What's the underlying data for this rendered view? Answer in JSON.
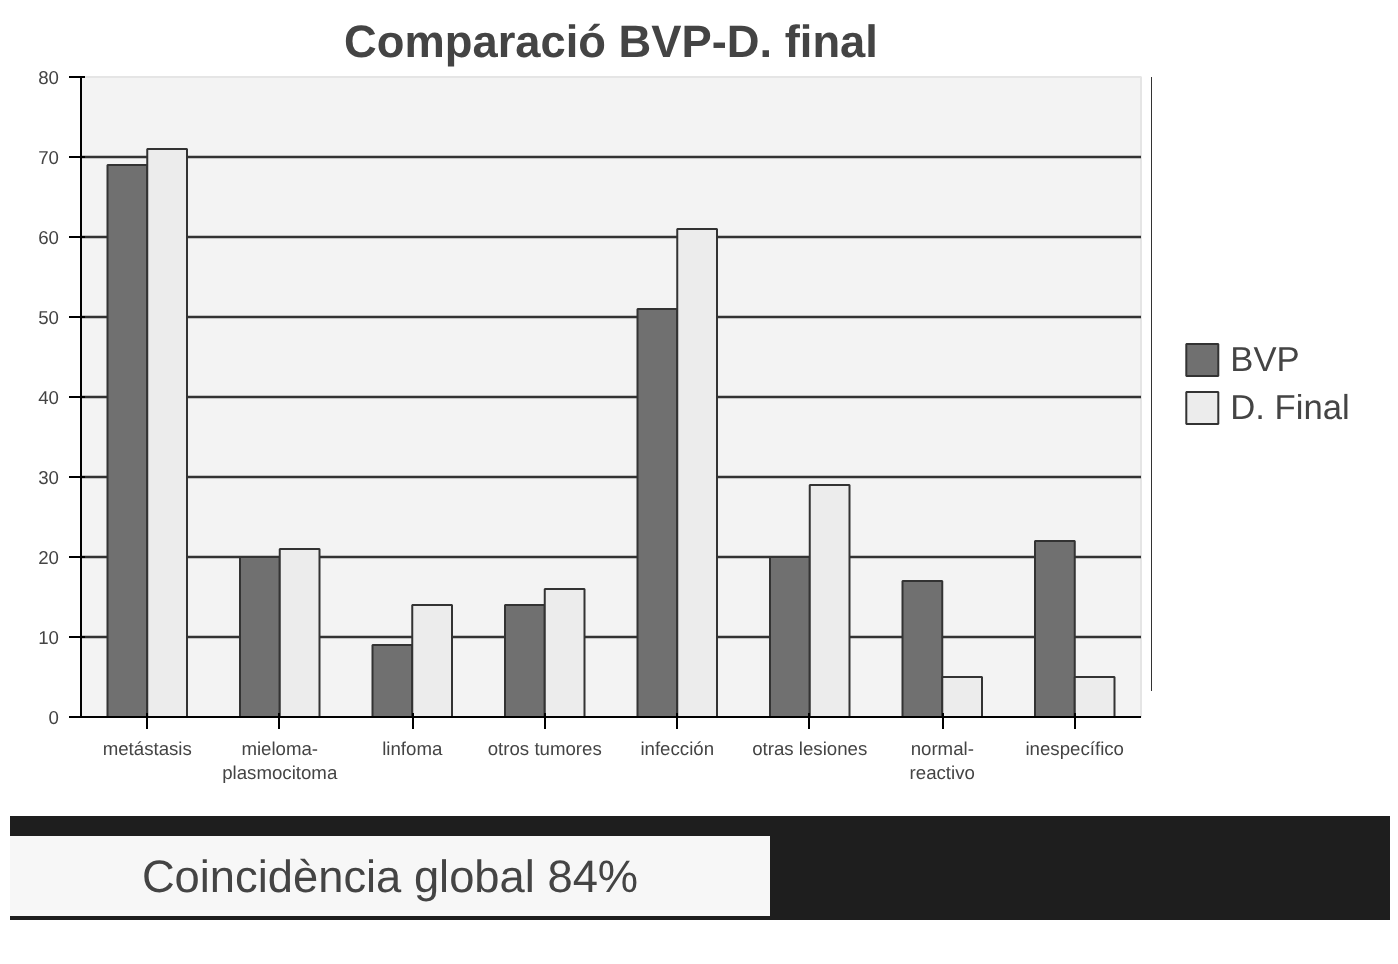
{
  "chart_data": {
    "type": "bar",
    "title": "Comparació BVP-D. final",
    "categories": [
      "metástasis",
      "mieloma-\nplasmocitoma",
      "linfoma",
      "otros tumores",
      "infección",
      "otras lesiones",
      "normal-\nreactivo",
      "inespecífico"
    ],
    "series": [
      {
        "name": "BVP",
        "color": "#707070",
        "values": [
          69,
          20,
          9,
          14,
          51,
          20,
          17,
          22
        ]
      },
      {
        "name": "D. Final",
        "color": "#ececec",
        "values": [
          71,
          21,
          14,
          16,
          61,
          29,
          5,
          5
        ]
      }
    ],
    "ylim": [
      0,
      80
    ],
    "yticks": [
      0,
      10,
      20,
      30,
      40,
      50,
      60,
      70,
      80
    ],
    "grid": "y",
    "legend": "right",
    "annotations": [
      "Coincidència global 84%"
    ]
  }
}
